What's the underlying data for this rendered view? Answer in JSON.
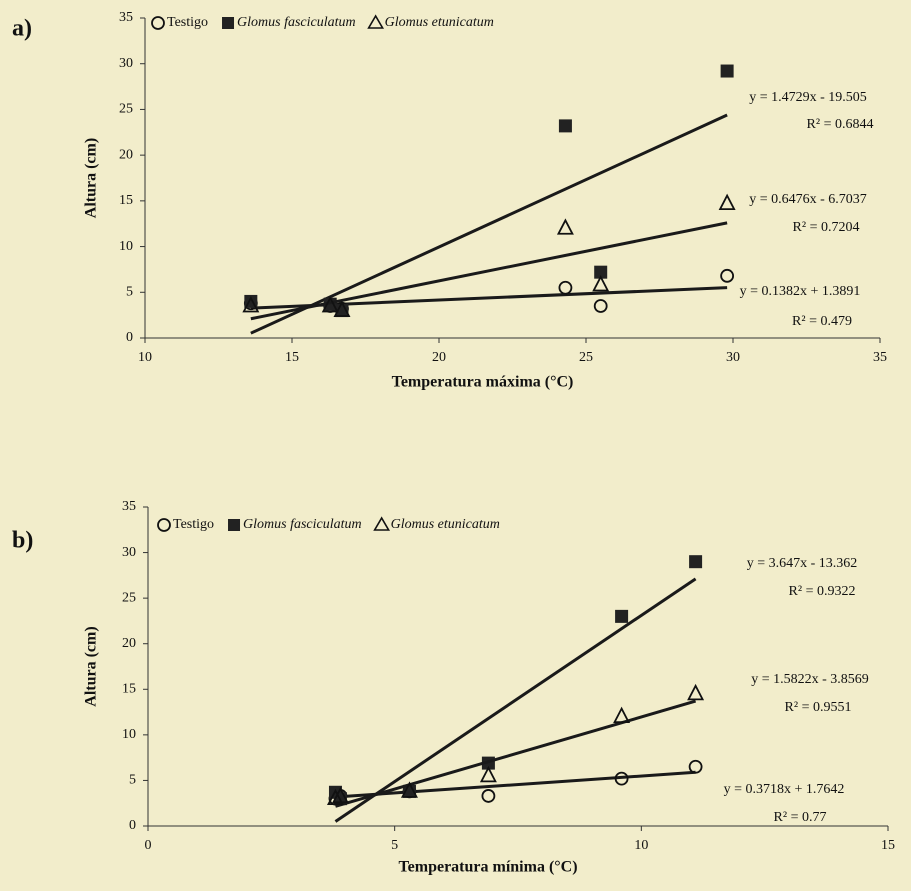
{
  "chart_data": [
    {
      "type": "scatter",
      "panel": "a)",
      "x_label": "Temperatura máxima (°C)",
      "y_label": "Altura (cm)",
      "xlim": [
        10,
        35
      ],
      "xticks": [
        10,
        15,
        20,
        25,
        30,
        35
      ],
      "ylim": [
        0,
        35
      ],
      "yticks": [
        0,
        5,
        10,
        15,
        20,
        25,
        30,
        35
      ],
      "series": [
        {
          "name": "Testigo",
          "marker": "circle",
          "color": "#111111",
          "x": [
            13.6,
            16.3,
            16.7,
            24.3,
            25.5,
            29.8
          ],
          "values": [
            3.8,
            3.5,
            3.2,
            5.5,
            3.5,
            6.8
          ],
          "trendline": {
            "slope": 0.1382,
            "intercept": 1.3891,
            "label": "y = 0.1382x + 1.3891",
            "r2_label": "R² = 0.479"
          }
        },
        {
          "name": "Glomus fasciculatum",
          "marker": "square",
          "color": "#222222",
          "x": [
            13.6,
            16.3,
            16.7,
            24.3,
            25.5,
            29.8
          ],
          "values": [
            4,
            3.7,
            3,
            23.2,
            7.2,
            29.2
          ],
          "trendline": {
            "slope": 1.4729,
            "intercept": -19.505,
            "label": "y = 1.4729x - 19.505",
            "r2_label": "R² = 0.6844"
          }
        },
        {
          "name": "Glomus etunicatum",
          "marker": "triangle",
          "color": "#111111",
          "x": [
            13.6,
            16.3,
            16.7,
            24.3,
            25.5,
            29.8
          ],
          "values": [
            3.5,
            3.5,
            3,
            12,
            5.8,
            14.7
          ],
          "trendline": {
            "slope": 0.6476,
            "intercept": -6.7037,
            "label": "y = 0.6476x - 6.7037",
            "r2_label": "R² = 0.7204"
          }
        }
      ]
    },
    {
      "type": "scatter",
      "panel": "b)",
      "x_label": "Temperatura mínima (°C)",
      "y_label": "Altura (cm)",
      "xlim": [
        0,
        15
      ],
      "xticks": [
        0,
        5,
        10,
        15
      ],
      "ylim": [
        0,
        35
      ],
      "yticks": [
        0,
        5,
        10,
        15,
        20,
        25,
        30,
        35
      ],
      "series": [
        {
          "name": "Testigo",
          "marker": "circle",
          "color": "#111111",
          "x": [
            3.8,
            3.9,
            5.3,
            6.9,
            9.6,
            11.1
          ],
          "values": [
            3,
            3.3,
            3.8,
            3.3,
            5.2,
            6.5
          ],
          "trendline": {
            "slope": 0.3718,
            "intercept": 1.7642,
            "label": "y = 0.3718x + 1.7642",
            "r2_label": "R² = 0.77"
          }
        },
        {
          "name": "Glomus fasciculatum",
          "marker": "square",
          "color": "#222222",
          "x": [
            3.8,
            3.9,
            5.3,
            6.9,
            9.6,
            11.1
          ],
          "values": [
            3.7,
            3,
            3.8,
            6.9,
            23,
            29
          ],
          "trendline": {
            "slope": 3.647,
            "intercept": -13.362,
            "label": "y = 3.647x - 13.362",
            "r2_label": "R² = 0.9322"
          }
        },
        {
          "name": "Glomus etunicatum",
          "marker": "triangle",
          "color": "#111111",
          "x": [
            3.8,
            3.9,
            5.3,
            6.9,
            9.6,
            11.1
          ],
          "values": [
            3,
            3.2,
            3.8,
            5.5,
            12,
            14.5
          ],
          "trendline": {
            "slope": 1.5822,
            "intercept": -3.8569,
            "label": "y = 1.5822x - 3.8569",
            "r2_label": "R² = 0.9551"
          }
        }
      ]
    }
  ]
}
